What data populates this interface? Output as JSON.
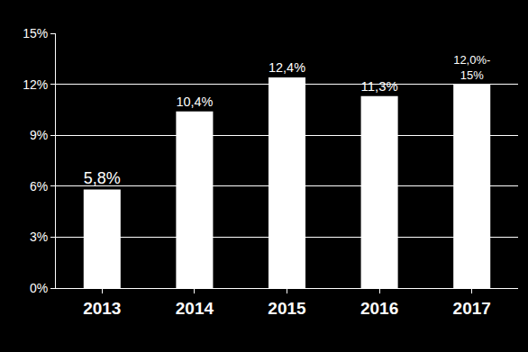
{
  "chart_data": {
    "type": "bar",
    "categories": [
      "2013",
      "2014",
      "2015",
      "2016",
      "2017"
    ],
    "values": [
      5.8,
      10.4,
      12.4,
      11.3,
      12.0
    ],
    "value_labels": [
      "5,8%",
      "10,4%",
      "12,4%",
      "11,3%",
      "12,0%-15%"
    ],
    "data_labels": true,
    "color": "#ffffff",
    "ylim": [
      0,
      15
    ],
    "yticks": [
      {
        "value": 0,
        "label": "0%"
      },
      {
        "value": 3,
        "label": "3%"
      },
      {
        "value": 6,
        "label": "6%"
      },
      {
        "value": 9,
        "label": "9%"
      },
      {
        "value": 12,
        "label": "12%"
      },
      {
        "value": 15,
        "label": "15%"
      }
    ],
    "grid": true
  }
}
